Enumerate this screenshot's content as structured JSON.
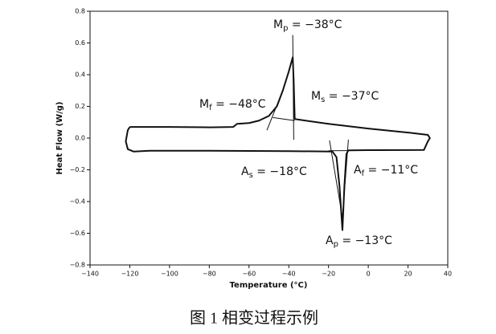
{
  "chart_data": {
    "type": "line",
    "xlabel": "Temperature (°C)",
    "ylabel": "Heat Flow (W/g)",
    "xlim": [
      -140,
      40
    ],
    "xticks": [
      {
        "value": -140,
        "label": "−140"
      },
      {
        "value": -120,
        "label": "−120"
      },
      {
        "value": -100,
        "label": "−100"
      },
      {
        "value": -80,
        "label": "−80"
      },
      {
        "value": -60,
        "label": "−60"
      },
      {
        "value": -40,
        "label": "−40"
      },
      {
        "value": -20,
        "label": "−20"
      },
      0,
      20,
      40
    ],
    "ylim": [
      -0.8,
      0.8
    ],
    "yticks": [
      {
        "value": -0.8,
        "label": "−0.8"
      },
      {
        "value": -0.6,
        "label": "−0.6"
      },
      {
        "value": -0.4,
        "label": "−0.4"
      },
      {
        "value": -0.2,
        "label": "−0.2"
      },
      {
        "value": 0,
        "label": "0.0"
      },
      0.2,
      0.4,
      0.6,
      0.8
    ],
    "series": [
      {
        "color": "#111111",
        "x": [
          -120,
          -100,
          -80,
          -68,
          -66,
          -60,
          -55,
          -50,
          -46,
          -43,
          -40,
          -38,
          -37.5,
          -37,
          -20,
          0,
          20,
          30,
          31,
          30,
          28,
          0,
          -10,
          -11,
          -12,
          -13,
          -14.5,
          -16,
          -18,
          -40,
          -80,
          -110,
          -118,
          -121,
          -122,
          -121,
          -120
        ],
        "values": [
          0.07,
          0.07,
          0.068,
          0.07,
          0.09,
          0.095,
          0.11,
          0.14,
          0.2,
          0.3,
          0.42,
          0.51,
          0.35,
          0.12,
          0.09,
          0.06,
          0.035,
          0.02,
          0.0,
          -0.02,
          -0.075,
          -0.076,
          -0.077,
          -0.1,
          -0.3,
          -0.58,
          -0.3,
          -0.12,
          -0.085,
          -0.082,
          -0.08,
          -0.08,
          -0.085,
          -0.07,
          -0.02,
          0.05,
          0.07
        ]
      },
      {
        "color": "#111111",
        "x": [
          -38,
          -37.5
        ],
        "values": [
          0.65,
          -0.01
        ]
      },
      {
        "color": "#111111",
        "x": [
          -51,
          -43
        ],
        "values": [
          0.05,
          0.3
        ]
      },
      {
        "color": "#111111",
        "x": [
          -48,
          -37
        ],
        "values": [
          0.13,
          0.11
        ]
      },
      {
        "color": "#111111",
        "x": [
          -19.5,
          -13
        ],
        "values": [
          -0.015,
          -0.5
        ]
      },
      {
        "color": "#111111",
        "x": [
          -10,
          -13
        ],
        "values": [
          -0.01,
          -0.5
        ]
      },
      {
        "color": "#111111",
        "x": [
          -20,
          10
        ],
        "values": [
          -0.08,
          -0.077
        ]
      }
    ],
    "annotations": [
      {
        "symbol": "M",
        "subscript": "p",
        "text": " = −38°C"
      },
      {
        "symbol": "M",
        "subscript": "f",
        "text": " = −48°C"
      },
      {
        "symbol": "M",
        "subscript": "s",
        "text": " = −37°C"
      },
      {
        "symbol": "A",
        "subscript": "s",
        "text": " = −18°C"
      },
      {
        "symbol": "A",
        "subscript": "f",
        "text": " = −11°C"
      },
      {
        "symbol": "A",
        "subscript": "p",
        "text": " = −13°C"
      }
    ],
    "caption": "图 1 相变过程示例"
  }
}
